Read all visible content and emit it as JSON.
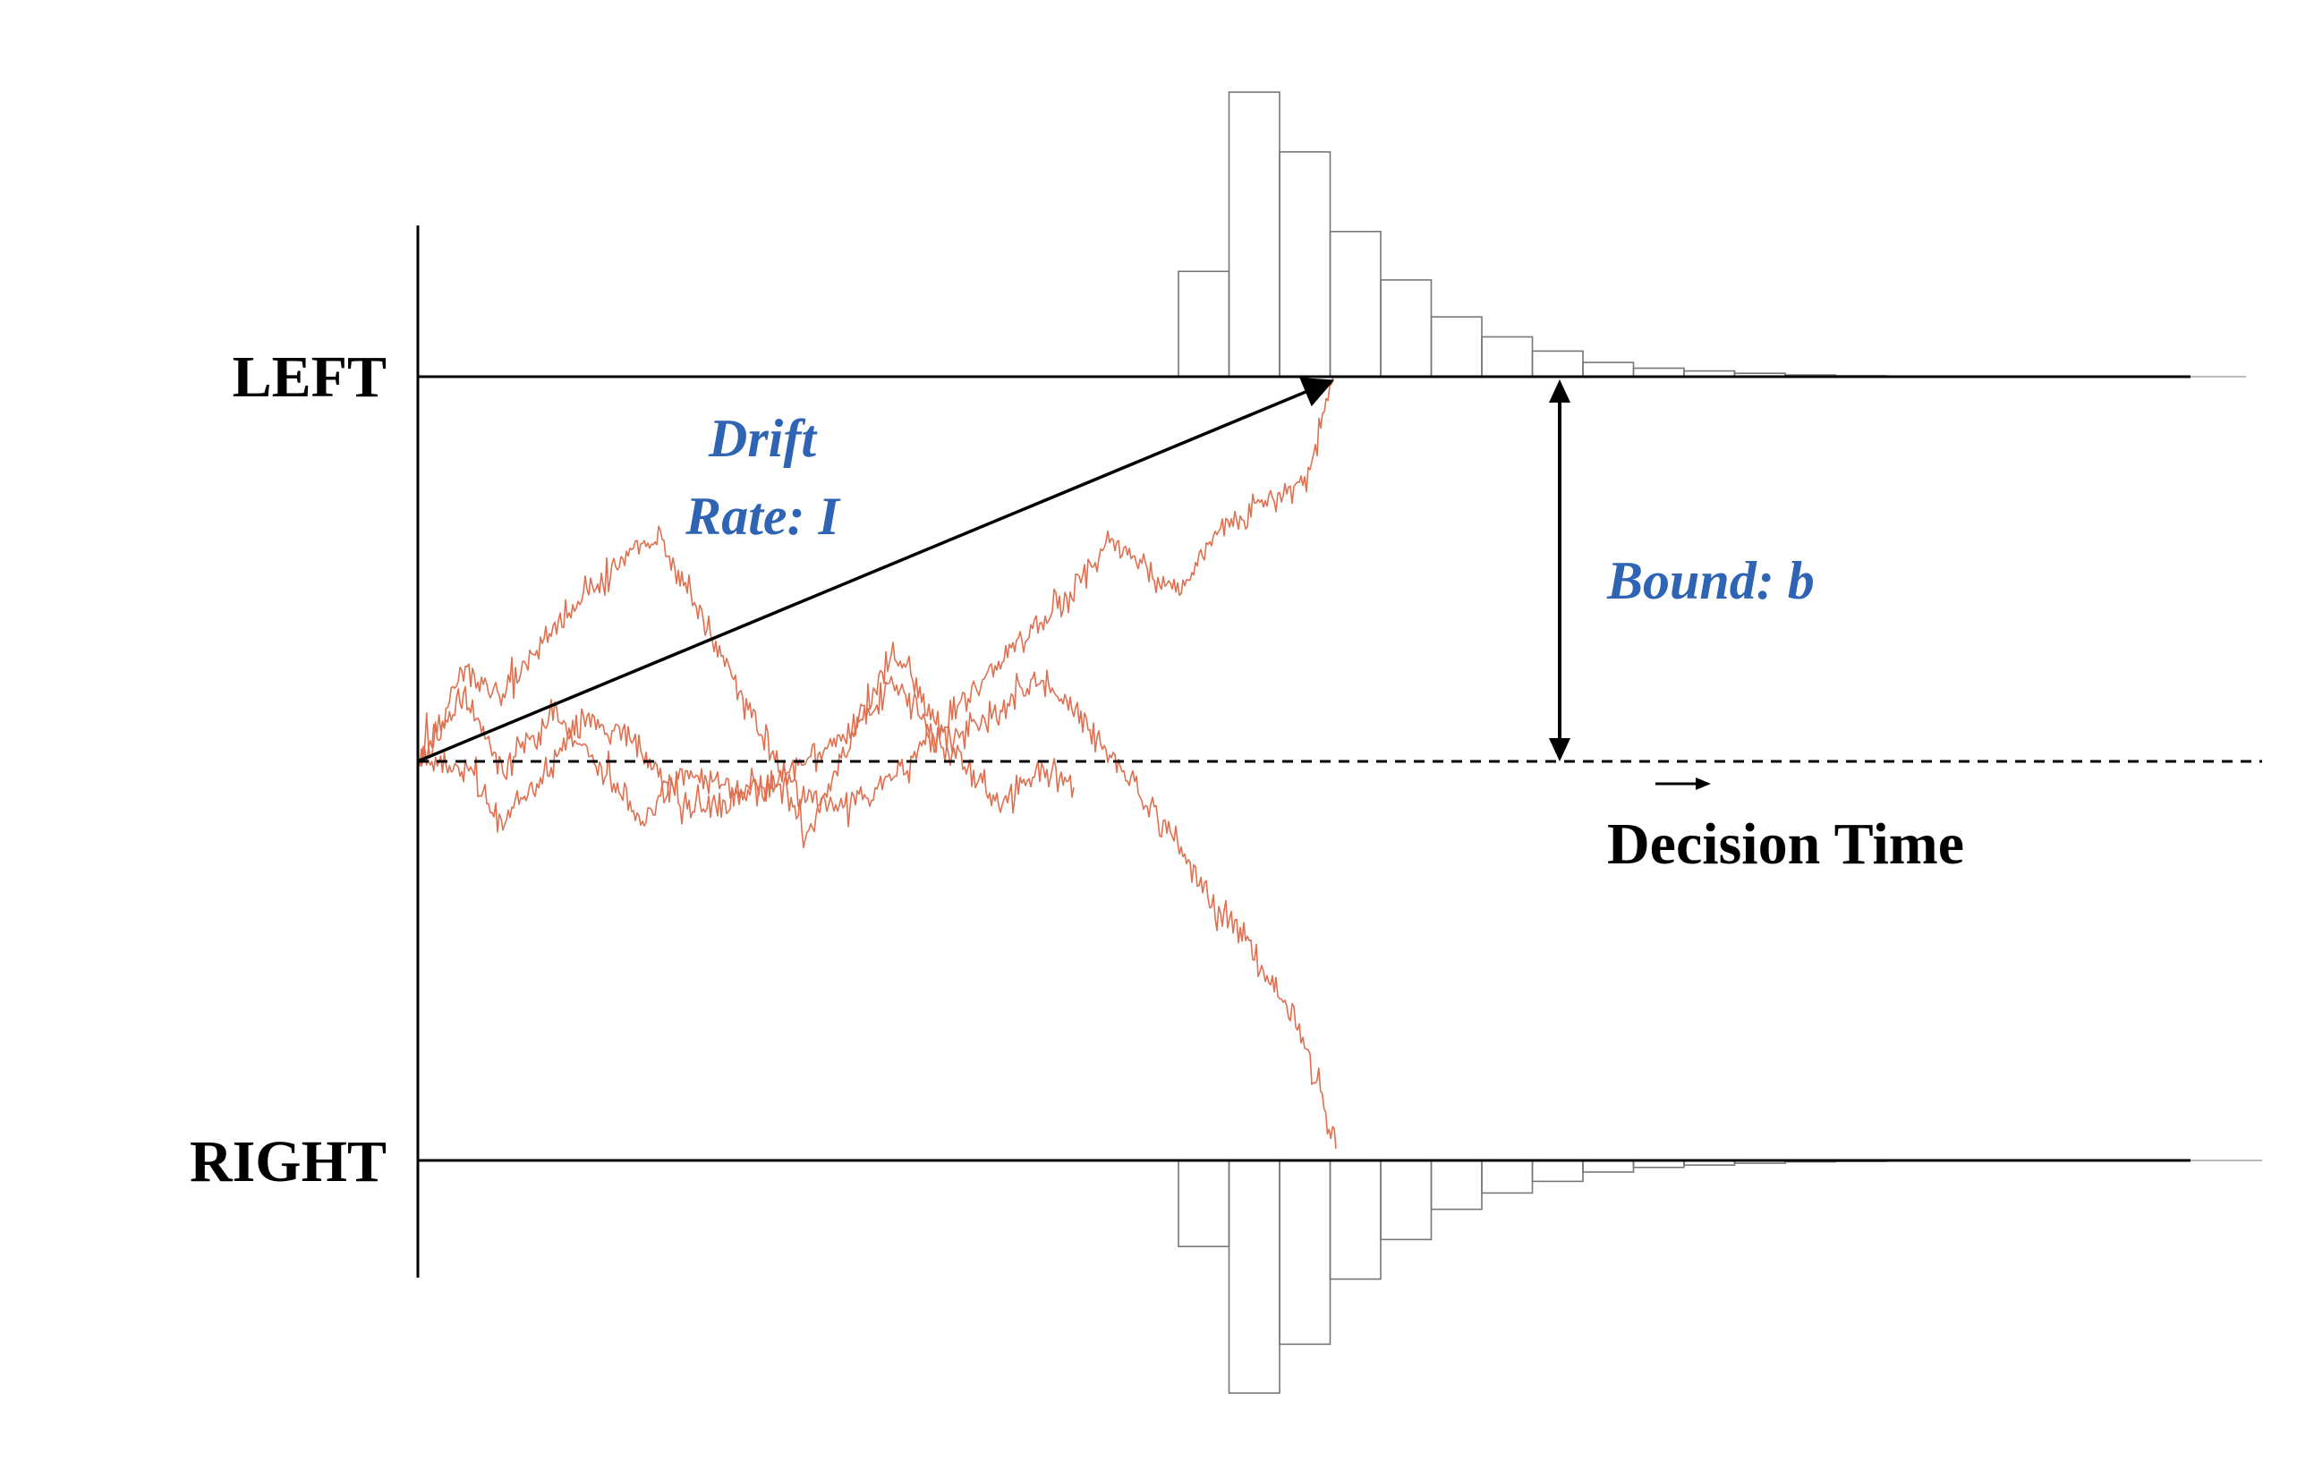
{
  "labels": {
    "upper_boundary": "LEFT",
    "lower_boundary": "RIGHT",
    "drift_line1": "Drift",
    "drift_line2": "Rate: I",
    "bound": "Bound: b",
    "time_axis": "Decision Time"
  },
  "colors": {
    "axis": "#000000",
    "annotation_text": "#2e64b3",
    "trajectory": "#e07050",
    "histogram_stroke": "#777777"
  },
  "chart_data": {
    "type": "bar",
    "series": [
      {
        "name": "LEFT",
        "values": [
          0.37,
          1.0,
          0.79,
          0.51,
          0.34,
          0.21,
          0.14,
          0.09,
          0.05,
          0.03,
          0.02,
          0.012,
          0.006,
          0.003
        ]
      },
      {
        "name": "RIGHT",
        "values": [
          0.37,
          1.0,
          0.79,
          0.51,
          0.34,
          0.21,
          0.14,
          0.09,
          0.05,
          0.03,
          0.02,
          0.012,
          0.006,
          0.003
        ]
      }
    ]
  }
}
